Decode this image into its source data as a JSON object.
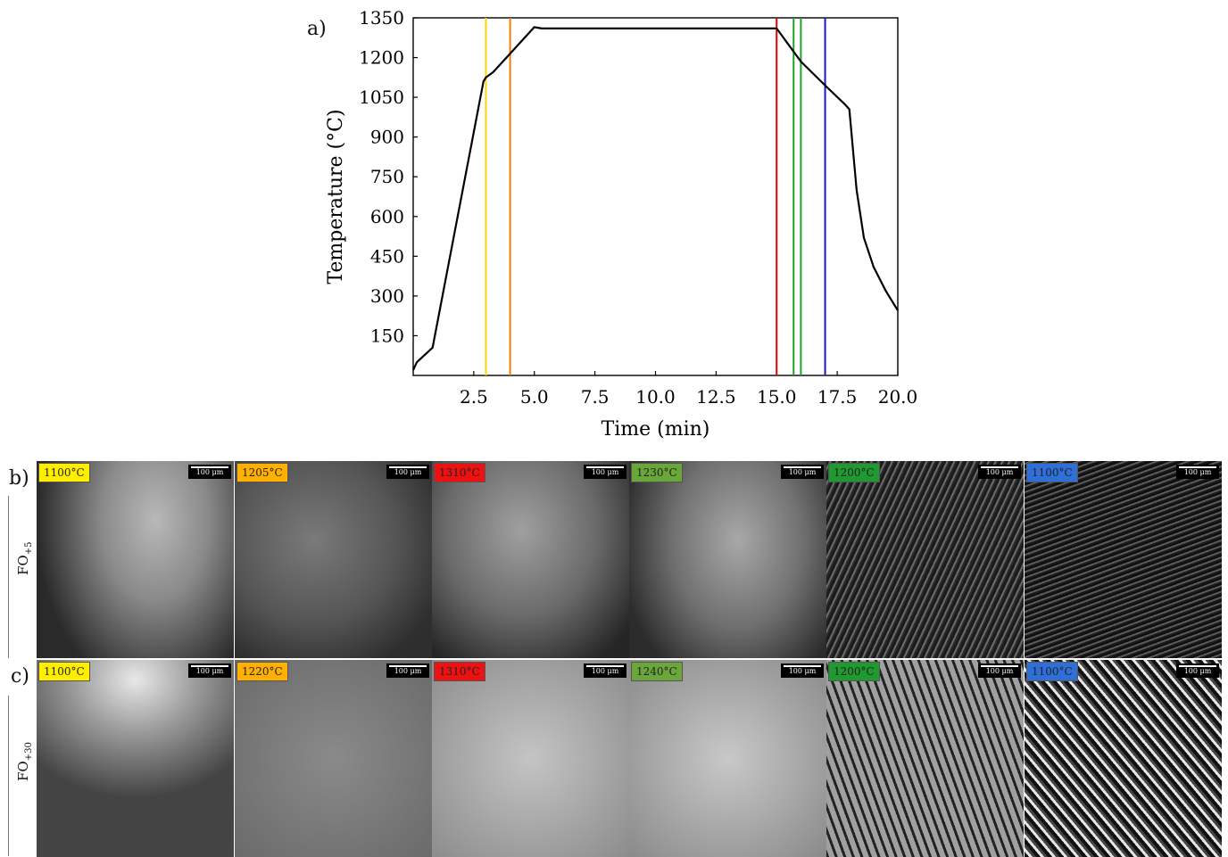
{
  "figure": {
    "panel_a_letter": "a)",
    "panel_b_letter": "b)",
    "panel_c_letter": "c)",
    "row_b_label_main": "FO",
    "row_b_label_sub": "+5",
    "row_c_label_main": "FO",
    "row_c_label_sub": "+30",
    "scale_text": "100 μm"
  },
  "chart_data": {
    "type": "line",
    "xlabel": "Time (min)",
    "ylabel": "Temperature (°C)",
    "xlim": [
      0,
      20
    ],
    "ylim": [
      0,
      1350
    ],
    "xticks": [
      2.5,
      5.0,
      7.5,
      10.0,
      12.5,
      15.0,
      17.5,
      20.0
    ],
    "xtick_labels": [
      "2.5",
      "5.0",
      "7.5",
      "10.0",
      "12.5",
      "15.0",
      "17.5",
      "20.0"
    ],
    "yticks": [
      150,
      300,
      450,
      600,
      750,
      900,
      1050,
      1200,
      1350
    ],
    "ytick_labels": [
      "150",
      "300",
      "450",
      "600",
      "750",
      "900",
      "1050",
      "1200",
      "1350"
    ],
    "series": [
      {
        "color": "#000000",
        "x": [
          0,
          0.15,
          0.8,
          2.9,
          3.0,
          3.3,
          4.0,
          5.0,
          5.3,
          10.0,
          15.0,
          16.0,
          17.0,
          17.8,
          18.0,
          18.3,
          18.6,
          19.0,
          19.5,
          20.0
        ],
        "y": [
          20,
          50,
          105,
          1110,
          1125,
          1145,
          1215,
          1315,
          1310,
          1310,
          1310,
          1185,
          1095,
          1025,
          1005,
          700,
          520,
          410,
          320,
          245
        ]
      }
    ],
    "markers": [
      {
        "x": 3.0,
        "color": "#ffd400"
      },
      {
        "x": 4.0,
        "color": "#f08000"
      },
      {
        "x": 15.0,
        "color": "#e00000"
      },
      {
        "x": 15.7,
        "color": "#22a02a"
      },
      {
        "x": 16.0,
        "color": "#22a02a"
      },
      {
        "x": 17.0,
        "color": "#1818c8"
      }
    ]
  },
  "rows": [
    {
      "id": "b",
      "tiles": [
        {
          "label": "1100°C",
          "badge_color": "#ffee00"
        },
        {
          "label": "1205°C",
          "badge_color": "#ffb000"
        },
        {
          "label": "1310°C",
          "badge_color": "#ee1111"
        },
        {
          "label": "1230°C",
          "badge_color": "#6aa63a"
        },
        {
          "label": "1200°C",
          "badge_color": "#1e9a30"
        },
        {
          "label": "1100°C",
          "badge_color": "#2f6fd8"
        }
      ]
    },
    {
      "id": "c",
      "tiles": [
        {
          "label": "1100°C",
          "badge_color": "#ffee00"
        },
        {
          "label": "1220°C",
          "badge_color": "#ffb000"
        },
        {
          "label": "1310°C",
          "badge_color": "#ee1111"
        },
        {
          "label": "1240°C",
          "badge_color": "#6aa63a"
        },
        {
          "label": "1200°C",
          "badge_color": "#1e9a30"
        },
        {
          "label": "1100°C",
          "badge_color": "#2f6fd8"
        }
      ]
    }
  ]
}
